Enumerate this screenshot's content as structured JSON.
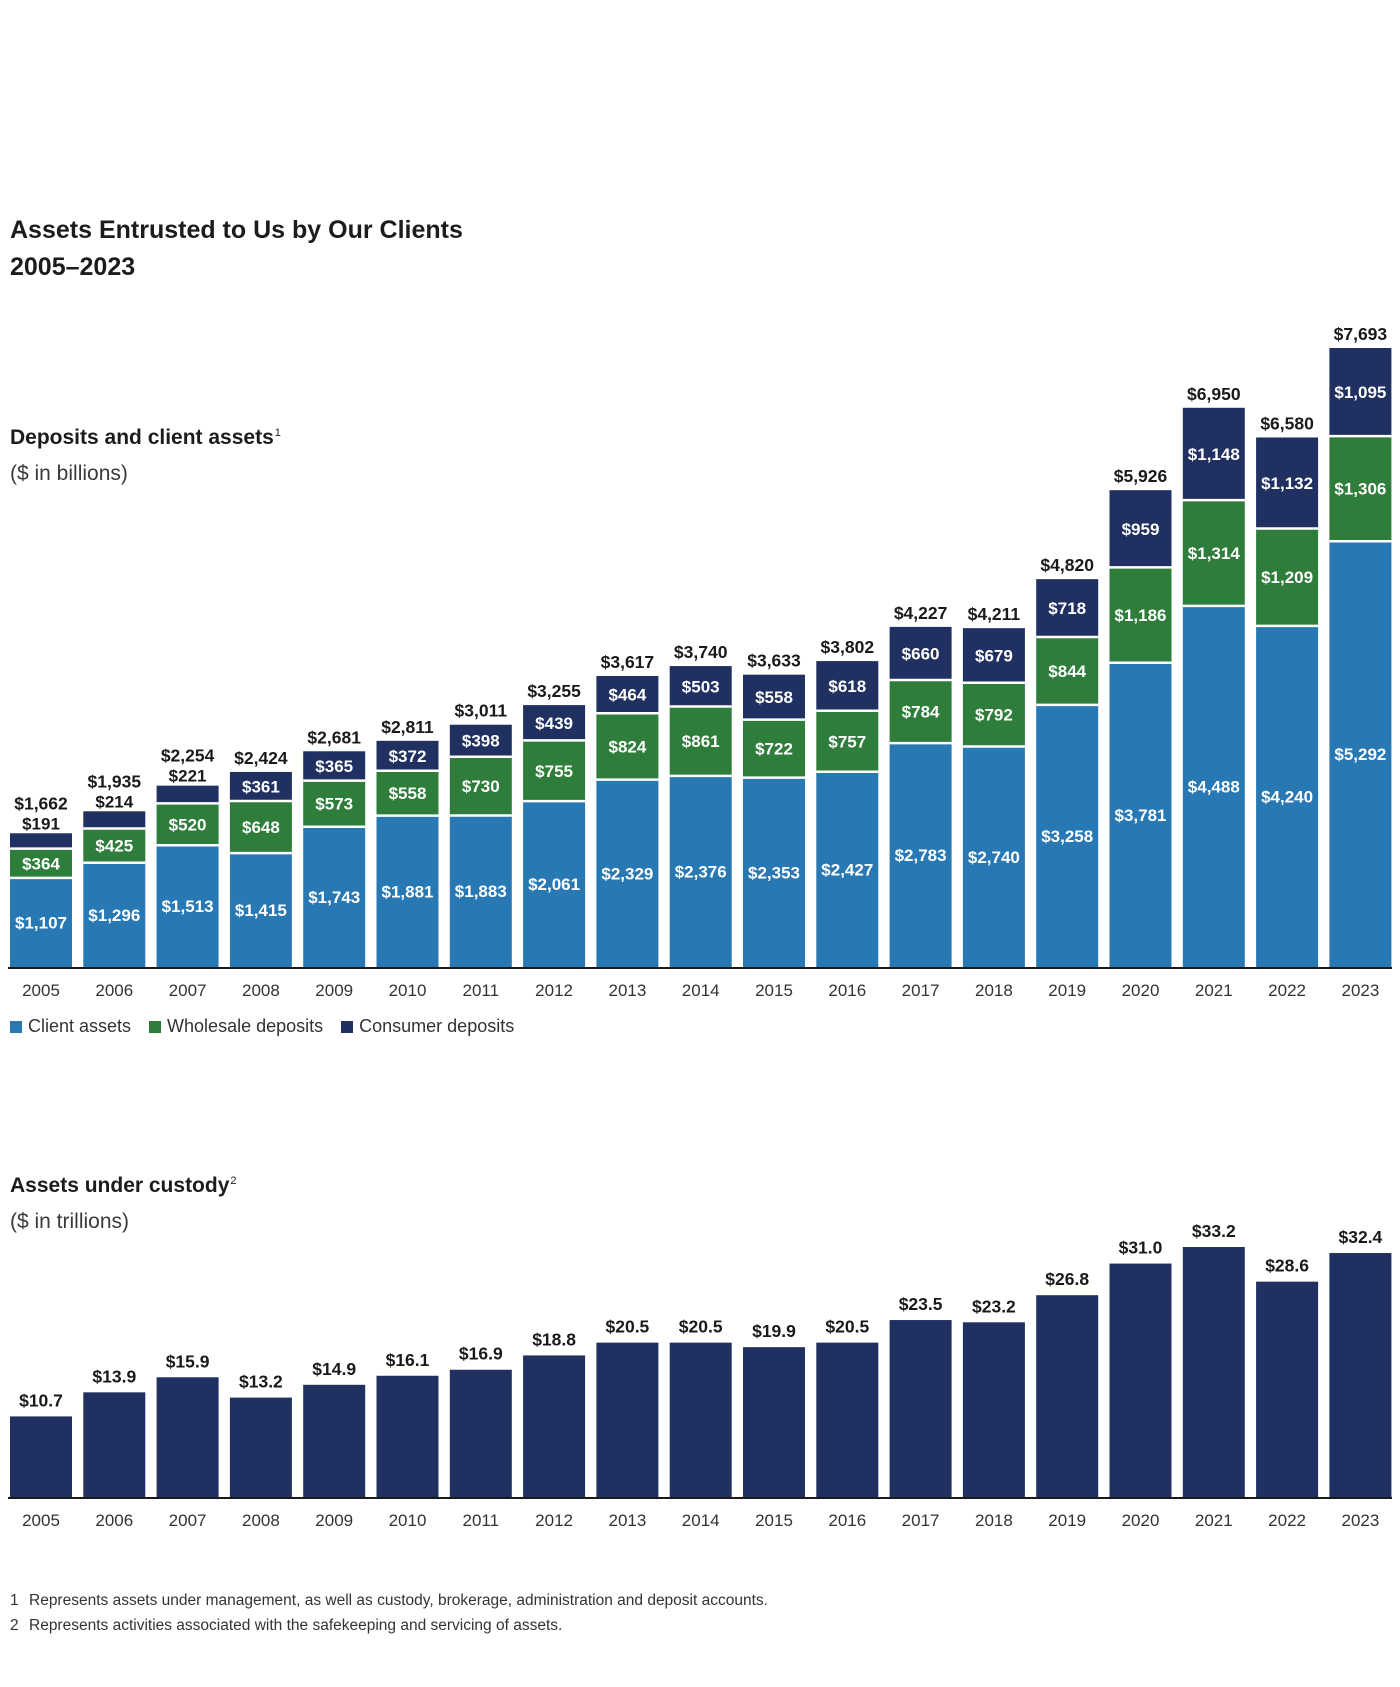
{
  "title_line1": "Assets Entrusted to Us by Our Clients",
  "title_line2": "2005–2023",
  "colors": {
    "client_assets": "#2878b4",
    "wholesale_deposits": "#2f7d3a",
    "consumer_deposits": "#1f3061",
    "custody": "#1f3061"
  },
  "chart1": {
    "title": "Deposits and client assets",
    "footnote_mark": "1",
    "subtitle": "($ in billions)"
  },
  "chart2": {
    "title": "Assets under custody",
    "footnote_mark": "2",
    "subtitle": "($ in trillions)"
  },
  "legend": [
    {
      "label": "Client assets",
      "color": "#2878b4"
    },
    {
      "label": "Wholesale deposits",
      "color": "#2f7d3a"
    },
    {
      "label": "Consumer deposits",
      "color": "#1f3061"
    }
  ],
  "footnotes": [
    {
      "num": "1",
      "text": "Represents assets under management, as well as custody, brokerage, administration and deposit accounts."
    },
    {
      "num": "2",
      "text": "Represents activities associated with the safekeeping and servicing of assets."
    }
  ],
  "chart_data": [
    {
      "type": "bar",
      "stacked": true,
      "title": "Deposits and client assets",
      "unit": "($ in billions)",
      "categories": [
        "2005",
        "2006",
        "2007",
        "2008",
        "2009",
        "2010",
        "2011",
        "2012",
        "2013",
        "2014",
        "2015",
        "2016",
        "2017",
        "2018",
        "2019",
        "2020",
        "2021",
        "2022",
        "2023"
      ],
      "series": [
        {
          "name": "Client assets",
          "color": "#2878b4",
          "values": [
            1107,
            1296,
            1513,
            1415,
            1743,
            1881,
            1883,
            2061,
            2329,
            2376,
            2353,
            2427,
            2783,
            2740,
            3258,
            3781,
            4488,
            4240,
            5292
          ],
          "labels": [
            "$1,107",
            "$1,296",
            "$1,513",
            "$1,415",
            "$1,743",
            "$1,881",
            "$1,883",
            "$2,061",
            "$2,329",
            "$2,376",
            "$2,353",
            "$2,427",
            "$2,783",
            "$2,740",
            "$3,258",
            "$3,781",
            "$4,488",
            "$4,240",
            "$5,292"
          ]
        },
        {
          "name": "Wholesale deposits",
          "color": "#2f7d3a",
          "values": [
            364,
            425,
            520,
            648,
            573,
            558,
            730,
            755,
            824,
            861,
            722,
            757,
            784,
            792,
            844,
            1186,
            1314,
            1209,
            1306
          ],
          "labels": [
            "$364",
            "$425",
            "$520",
            "$648",
            "$573",
            "$558",
            "$730",
            "$755",
            "$824",
            "$861",
            "$722",
            "$757",
            "$784",
            "$792",
            "$844",
            "$1,186",
            "$1,314",
            "$1,209",
            "$1,306"
          ]
        },
        {
          "name": "Consumer deposits",
          "color": "#1f3061",
          "values": [
            191,
            214,
            221,
            361,
            365,
            372,
            398,
            439,
            464,
            503,
            558,
            618,
            660,
            679,
            718,
            959,
            1148,
            1132,
            1095
          ],
          "labels": [
            "$191",
            "$214",
            "$221",
            "$361",
            "$365",
            "$372",
            "$398",
            "$439",
            "$464",
            "$503",
            "$558",
            "$618",
            "$660",
            "$679",
            "$718",
            "$959",
            "$1,148",
            "$1,132",
            "$1,095"
          ]
        }
      ],
      "totals": [
        1662,
        1935,
        2254,
        2424,
        2681,
        2811,
        3011,
        3255,
        3617,
        3740,
        3633,
        3802,
        4227,
        4211,
        4820,
        5926,
        6950,
        6580,
        7693
      ],
      "total_labels": [
        "$1,662",
        "$1,935",
        "$2,254",
        "$2,424",
        "$2,681",
        "$2,811",
        "$3,011",
        "$3,255",
        "$3,617",
        "$3,740",
        "$3,633",
        "$3,802",
        "$4,227",
        "$4,211",
        "$4,820",
        "$5,926",
        "$6,950",
        "$6,580",
        "$7,693"
      ],
      "ylim": [
        0,
        7693
      ],
      "legend_position": "bottom-left"
    },
    {
      "type": "bar",
      "title": "Assets under custody",
      "unit": "($ in trillions)",
      "categories": [
        "2005",
        "2006",
        "2007",
        "2008",
        "2009",
        "2010",
        "2011",
        "2012",
        "2013",
        "2014",
        "2015",
        "2016",
        "2017",
        "2018",
        "2019",
        "2020",
        "2021",
        "2022",
        "2023"
      ],
      "series": [
        {
          "name": "Assets under custody",
          "color": "#1f3061",
          "values": [
            10.7,
            13.9,
            15.9,
            13.2,
            14.9,
            16.1,
            16.9,
            18.8,
            20.5,
            20.5,
            19.9,
            20.5,
            23.5,
            23.2,
            26.8,
            31.0,
            33.2,
            28.6,
            32.4
          ],
          "labels": [
            "$10.7",
            "$13.9",
            "$15.9",
            "$13.2",
            "$14.9",
            "$16.1",
            "$16.9",
            "$18.8",
            "$20.5",
            "$20.5",
            "$19.9",
            "$20.5",
            "$23.5",
            "$23.2",
            "$26.8",
            "$31.0",
            "$33.2",
            "$28.6",
            "$32.4"
          ]
        }
      ],
      "ylim": [
        0,
        33.2
      ]
    }
  ]
}
